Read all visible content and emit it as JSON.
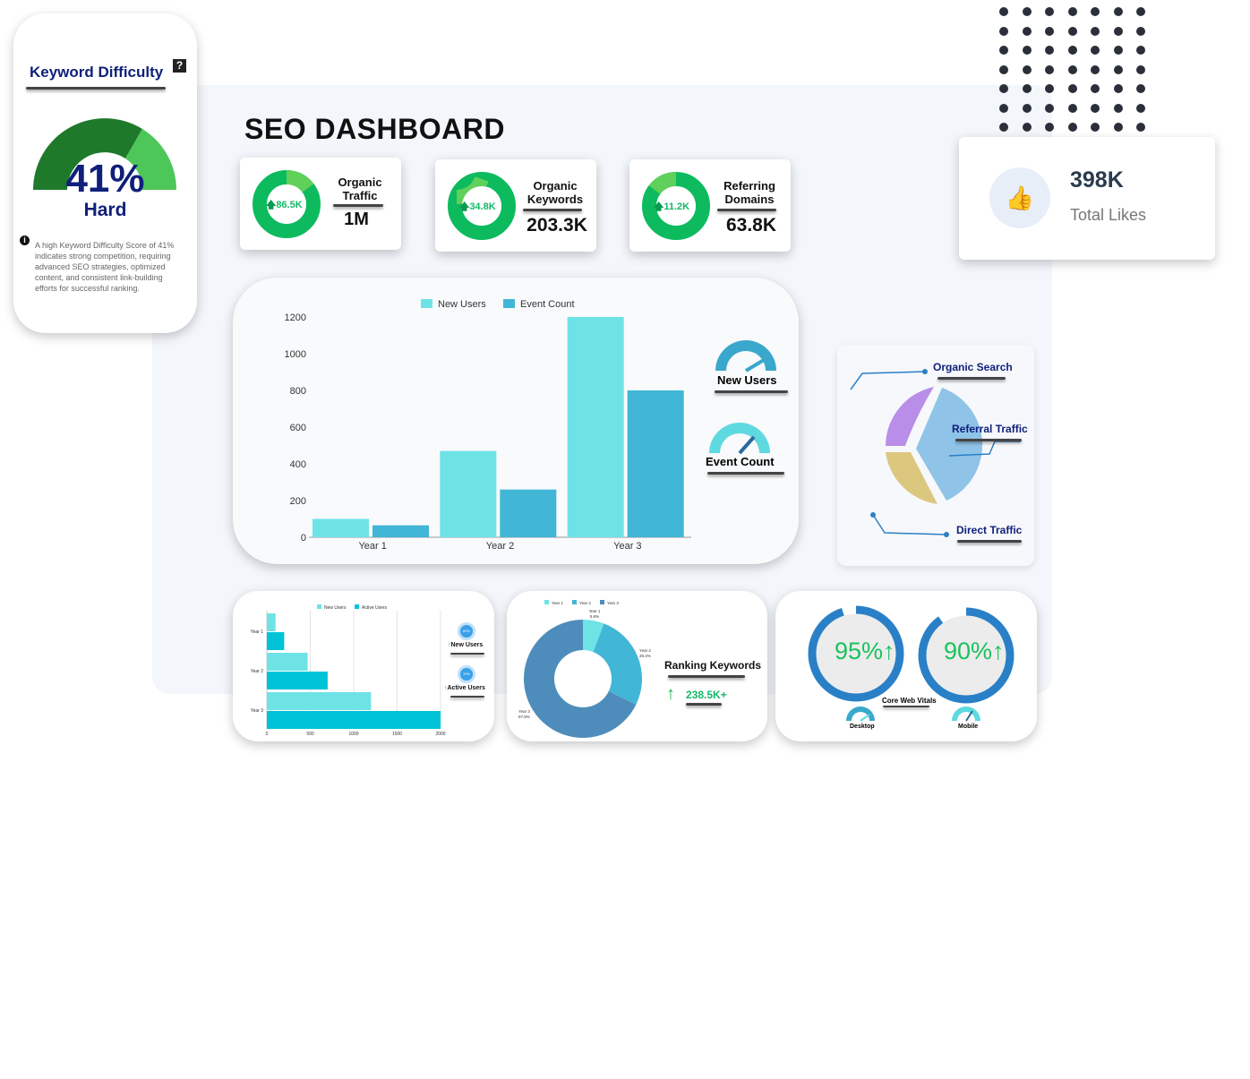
{
  "title": "SEO DASHBOARD",
  "keyword_difficulty": {
    "title": "Keyword Difficulty",
    "help_icon": "question-icon",
    "value": "41%",
    "level": "Hard",
    "gauge_fraction": 0.41,
    "info_icon": "info-icon",
    "description": "A high Keyword Difficulty Score of 41% indicates strong competition, requiring advanced SEO strategies, optimized content, and consistent link-building efforts for successful ranking."
  },
  "kpis": [
    {
      "label_line1": "Organic",
      "label_line2": "Traffic",
      "value": "1M",
      "change": "86.5K"
    },
    {
      "label_line1": "Organic",
      "label_line2": "Keywords",
      "value": "203.3K",
      "change": "34.8K"
    },
    {
      "label_line1": "Referring",
      "label_line2": "Domains",
      "value": "63.8K",
      "change": "11.2K"
    }
  ],
  "likes": {
    "value": "398K",
    "label": "Total Likes",
    "icon": "thumbs-up-icon"
  },
  "colors": {
    "green": "#0dbb5e",
    "light_green": "#5fd05a",
    "teal": "#6ee3e6",
    "blue": "#41b6d6",
    "navy": "#0f1f7a",
    "ring_blue": "#2a80c6"
  },
  "gauges": {
    "new_users": "New Users",
    "event_count": "Event Count"
  },
  "pie": {
    "labels": [
      "Organic Search",
      "Referral Traffic",
      "Direct Traffic"
    ],
    "colors": [
      "#b98ee8",
      "#8fc3e8",
      "#dcc77e"
    ]
  },
  "chart_data": [
    {
      "type": "bar",
      "categories": [
        "Year 1",
        "Year 2",
        "Year 3"
      ],
      "series": [
        {
          "name": "New Users",
          "values": [
            100,
            470,
            1200
          ],
          "color": "#6ee3e6"
        },
        {
          "name": "Event Count",
          "values": [
            65,
            260,
            800
          ],
          "color": "#41b6d6"
        }
      ],
      "ylim": [
        0,
        1200
      ],
      "yticks": [
        "0",
        "200",
        "400",
        "600",
        "800",
        "1000",
        "1200"
      ],
      "legend": "top"
    },
    {
      "type": "bar",
      "orientation": "horizontal",
      "categories": [
        "Year 1",
        "Year 2",
        "Year 3"
      ],
      "series": [
        {
          "name": "New Users",
          "values": [
            100,
            470,
            1200
          ],
          "color": "#6ee3e6"
        },
        {
          "name": "Active Users",
          "values": [
            200,
            700,
            2000
          ],
          "color": "#00c3d8"
        }
      ],
      "xlim": [
        0,
        2000
      ],
      "xticks": [
        "0",
        "500",
        "1000",
        "1500",
        "2000"
      ],
      "legend": "top"
    },
    {
      "type": "pie",
      "donut": true,
      "categories": [
        "Year 1",
        "Year 2",
        "Year 3"
      ],
      "values": [
        5.8,
        26.4,
        67.8
      ],
      "value_labels": [
        "5.8%",
        "26.4%",
        "67.8%"
      ],
      "colors": [
        "#6ee3e6",
        "#41b6d6",
        "#4e8dbb"
      ],
      "legend": "top"
    }
  ],
  "side_badges": [
    {
      "label": "New Users",
      "value": "60%"
    },
    {
      "label": "Active Users",
      "value": "70%"
    }
  ],
  "ranking": {
    "title": "Ranking Keywords",
    "value": "238.5K+"
  },
  "vitals": {
    "title": "Core Web Vitals",
    "desktop": {
      "label": "Desktop",
      "value": "95%",
      "fraction": 0.95
    },
    "mobile": {
      "label": "Mobile",
      "value": "90%",
      "fraction": 0.9
    }
  }
}
